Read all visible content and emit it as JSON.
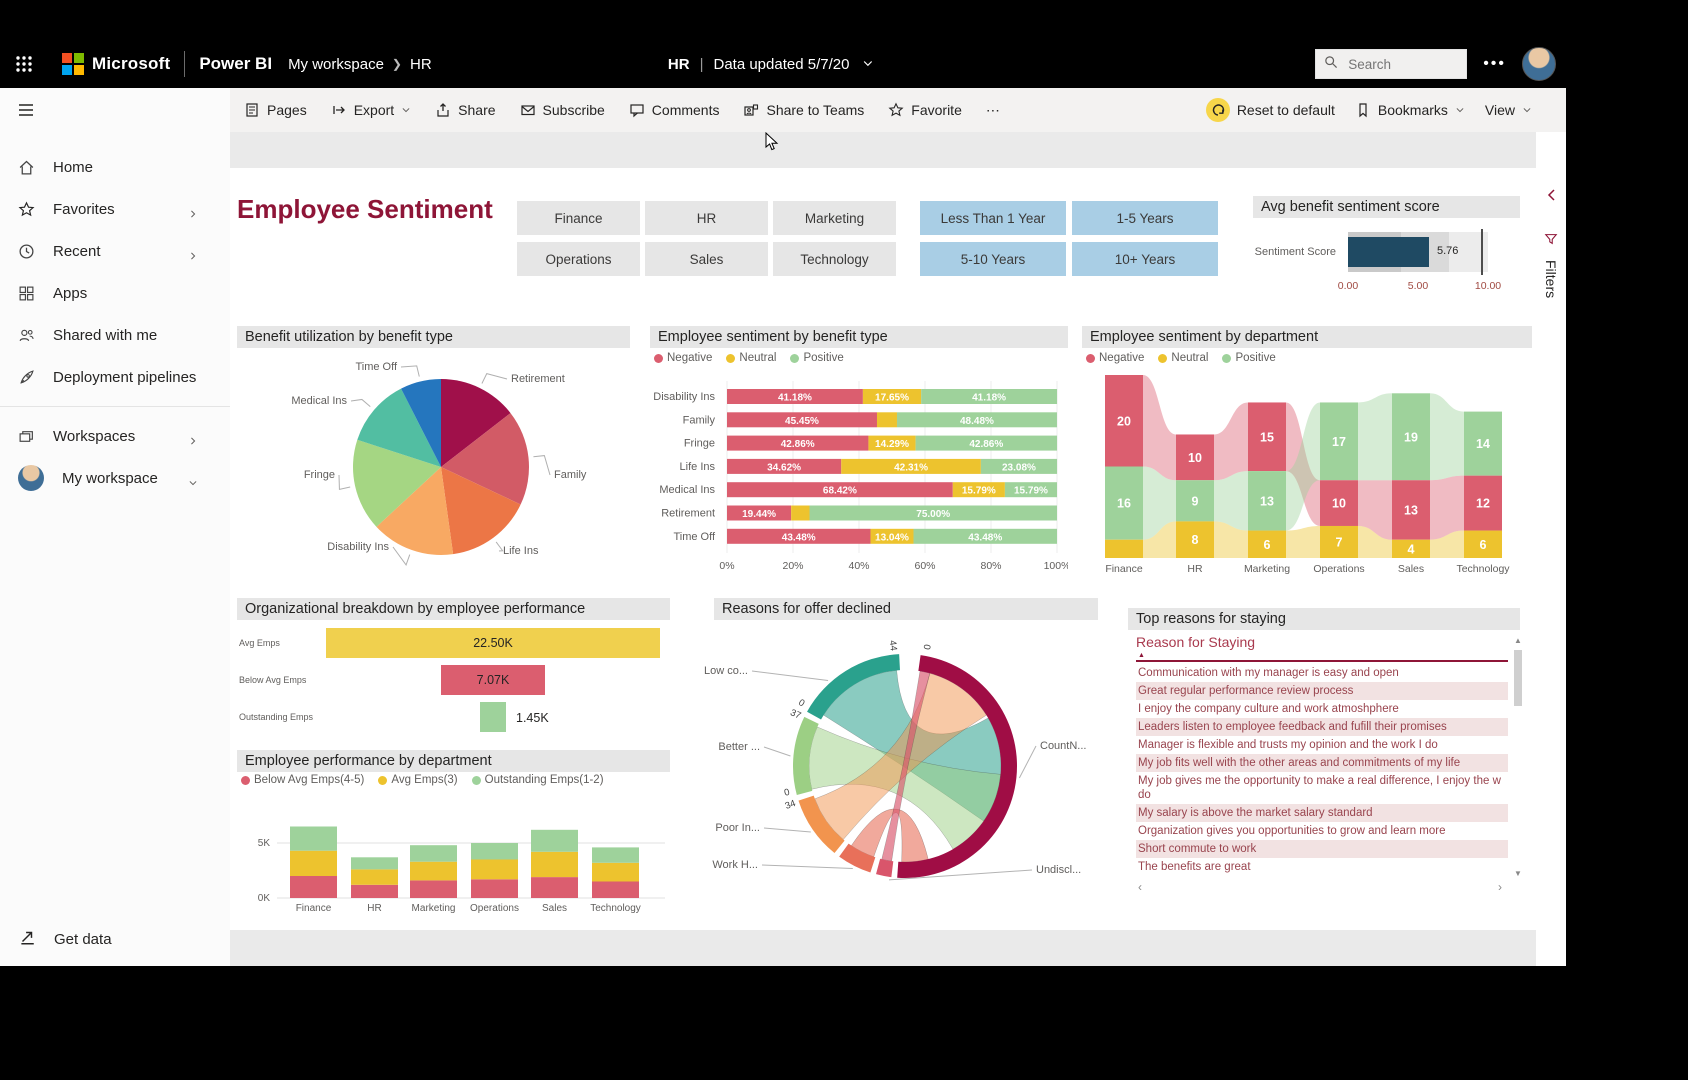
{
  "app": {
    "header": {
      "brand": "Microsoft",
      "product": "Power BI",
      "breadcrumb": [
        "My workspace",
        "HR"
      ],
      "center_title": "HR",
      "center_sep": "|",
      "center_status": "Data updated 5/7/20",
      "search_placeholder": "Search",
      "more_label": "•••"
    },
    "toolbar": {
      "left": [
        {
          "label": "Pages",
          "icon": "pages"
        },
        {
          "label": "Export",
          "icon": "export",
          "chevron": true
        },
        {
          "label": "Share",
          "icon": "share"
        },
        {
          "label": "Subscribe",
          "icon": "mail"
        },
        {
          "label": "Comments",
          "icon": "comment"
        },
        {
          "label": "Share to Teams",
          "icon": "teams"
        },
        {
          "label": "Favorite",
          "icon": "star"
        },
        {
          "label": "⋯",
          "icon": null
        }
      ],
      "right": [
        {
          "label": "Reset to default",
          "icon": "undo",
          "highlight": "#f7d64a"
        },
        {
          "label": "Bookmarks",
          "icon": "bookmark",
          "chevron": true
        },
        {
          "label": "View",
          "icon": null,
          "chevron": true
        }
      ]
    },
    "sidebar": {
      "items": [
        {
          "label": "Home",
          "icon": "home"
        },
        {
          "label": "Favorites",
          "icon": "star",
          "chevron": "right"
        },
        {
          "label": "Recent",
          "icon": "clock",
          "chevron": "right"
        },
        {
          "label": "Apps",
          "icon": "apps"
        },
        {
          "label": "Shared with me",
          "icon": "people"
        },
        {
          "label": "Deployment pipelines",
          "icon": "rocket"
        },
        {
          "label": "Workspaces",
          "icon": "workspaces",
          "chevron": "right",
          "group": 2
        },
        {
          "label": "My workspace",
          "icon": "avatar",
          "chevron": "down",
          "group": 2
        }
      ],
      "footer_label": "Get data"
    },
    "filters_rail_label": "Filters"
  },
  "report": {
    "title": "Employee Sentiment",
    "department_slicer": [
      "Finance",
      "HR",
      "Marketing",
      "Operations",
      "Sales",
      "Technology"
    ],
    "tenure_slicer": [
      "Less Than 1 Year",
      "1-5 Years",
      "5-10 Years",
      "10+ Years"
    ],
    "sentiment_gauge": {
      "title": "Avg benefit sentiment score",
      "label": "Sentiment Score",
      "value": 5.76,
      "value_label": "5.76",
      "max": 10,
      "target": 9.5,
      "min_label": "0.00",
      "mid_label": "5.00",
      "max_label": "10.00",
      "bar_color": "#1F4A63"
    }
  },
  "chart_data": [
    {
      "name": "benefit_utilization",
      "type": "pie",
      "title": "Benefit utilization by benefit type",
      "slices": [
        {
          "label": "Retirement",
          "value": 14.5,
          "color": "#A0104A"
        },
        {
          "label": "Family",
          "value": 17.5,
          "color": "#D25B66"
        },
        {
          "label": "Life Ins",
          "value": 15.8,
          "color": "#EC7646"
        },
        {
          "label": "Disability Ins",
          "value": 15.3,
          "color": "#F8A963"
        },
        {
          "label": "Fringe",
          "value": 16.9,
          "color": "#A5D683"
        },
        {
          "label": "Medical Ins",
          "value": 12.5,
          "color": "#52BEA2"
        },
        {
          "label": "Time Off",
          "value": 7.5,
          "color": "#2576BE"
        }
      ]
    },
    {
      "name": "sentiment_by_benefit",
      "type": "bar",
      "title": "Employee sentiment by benefit type",
      "legend": [
        "Negative",
        "Neutral",
        "Positive"
      ],
      "categories": [
        "Disability Ins",
        "Family",
        "Fringe",
        "Life Ins",
        "Medical Ins",
        "Retirement",
        "Time Off"
      ],
      "series": [
        {
          "name": "Negative",
          "color": "#DB5E6F",
          "values": [
            41.18,
            45.45,
            42.86,
            34.62,
            68.42,
            19.44,
            43.48
          ],
          "labels": [
            "41.18%",
            "45.45%",
            "42.86%",
            "34.62%",
            "68.42%",
            "19.44%",
            "43.48%"
          ]
        },
        {
          "name": "Neutral",
          "color": "#EDC32E",
          "values": [
            17.65,
            6.06,
            14.29,
            42.31,
            15.79,
            5.56,
            13.04
          ],
          "labels": [
            "17.65%",
            "",
            "14.29%",
            "42.31%",
            "15.79%",
            "",
            "13.04%"
          ]
        },
        {
          "name": "Positive",
          "color": "#9ED29B",
          "values": [
            41.18,
            48.48,
            42.86,
            23.08,
            15.79,
            75.0,
            43.48
          ],
          "labels": [
            "41.18%",
            "48.48%",
            "42.86%",
            "23.08%",
            "15.79%",
            "75.00%",
            "43.48%"
          ]
        }
      ],
      "x_ticks": [
        "0%",
        "20%",
        "40%",
        "60%",
        "80%",
        "100%"
      ],
      "xlim": [
        0,
        100
      ]
    },
    {
      "name": "sentiment_by_department",
      "type": "ribbon",
      "title": "Employee sentiment by department",
      "legend": [
        "Negative",
        "Neutral",
        "Positive"
      ],
      "categories": [
        "Finance",
        "HR",
        "Marketing",
        "Operations",
        "Sales",
        "Technology"
      ],
      "series": [
        {
          "name": "Negative",
          "color": "#DB5E6F",
          "values": [
            20,
            10,
            15,
            10,
            13,
            12
          ]
        },
        {
          "name": "Neutral",
          "color": "#EDC32E",
          "values": [
            4,
            8,
            6,
            7,
            4,
            6
          ]
        },
        {
          "name": "Positive",
          "color": "#9ED29B",
          "values": [
            16,
            9,
            13,
            17,
            19,
            14
          ]
        }
      ]
    },
    {
      "name": "org_breakdown",
      "type": "funnel",
      "title": "Organizational breakdown by employee performance",
      "categories": [
        "Avg Emps",
        "Below Avg Emps",
        "Outstanding Emps"
      ],
      "values": [
        22.5,
        7.07,
        1.45
      ],
      "value_labels": [
        "22.50K",
        "7.07K",
        "1.45K"
      ],
      "colors": [
        "#F0D04E",
        "#DB5E6F",
        "#9ED29B"
      ]
    },
    {
      "name": "performance_by_department",
      "type": "bar",
      "title": "Employee performance by department",
      "legend": [
        "Below Avg Emps(4-5)",
        "Avg Emps(3)",
        "Outstanding Emps(1-2)"
      ],
      "categories": [
        "Finance",
        "HR",
        "Marketing",
        "Operations",
        "Sales",
        "Technology"
      ],
      "series": [
        {
          "name": "Below Avg Emps(4-5)",
          "color": "#DB5E6F",
          "values": [
            2.0,
            1.2,
            1.6,
            1.7,
            1.9,
            1.5
          ]
        },
        {
          "name": "Avg Emps(3)",
          "color": "#EDC32E",
          "values": [
            2.3,
            1.4,
            1.7,
            1.8,
            2.3,
            1.7
          ]
        },
        {
          "name": "Outstanding Emps(1-2)",
          "color": "#9ED29B",
          "values": [
            2.2,
            1.1,
            1.5,
            1.5,
            2.0,
            1.4
          ]
        }
      ],
      "y_ticks": [
        "0K",
        "5K"
      ],
      "ylim": [
        0,
        6.5
      ]
    },
    {
      "name": "reasons_offer_declined",
      "type": "chord",
      "title": "Reasons for offer declined",
      "labels": [
        "Low co...",
        "Better ...",
        "Poor In...",
        "Work H...",
        "Undiscl...",
        "CountN..."
      ],
      "arc_colors": [
        "#2AA18D",
        "#9CCF84",
        "#F2944E",
        "#E8705A",
        "#D9556B",
        "#A00D45"
      ],
      "tick_labels": [
        "44",
        "0",
        "0",
        "37",
        "0",
        "34"
      ]
    },
    {
      "name": "top_reasons_for_staying",
      "type": "table",
      "title": "Top reasons for staying",
      "column_header": "Reason for Staying",
      "rows": [
        "Communication with my manager is easy and open",
        "Great regular performance review process",
        "I enjoy the company culture and work atmoshphere",
        "Leaders listen to employee feedback and fufill their promises",
        "Manager is flexible and trusts my opinion and the work I do",
        "My job fits well with the other areas and commitments of my life",
        "My job gives me the opportunity to make a real difference, I enjoy the w do",
        "My salary is above the market salary standard",
        "Organization gives you opportunities to grow and learn more",
        "Short commute to work",
        "The benefits are great"
      ],
      "shaded_rows": [
        1,
        3,
        5,
        7,
        9
      ]
    }
  ]
}
